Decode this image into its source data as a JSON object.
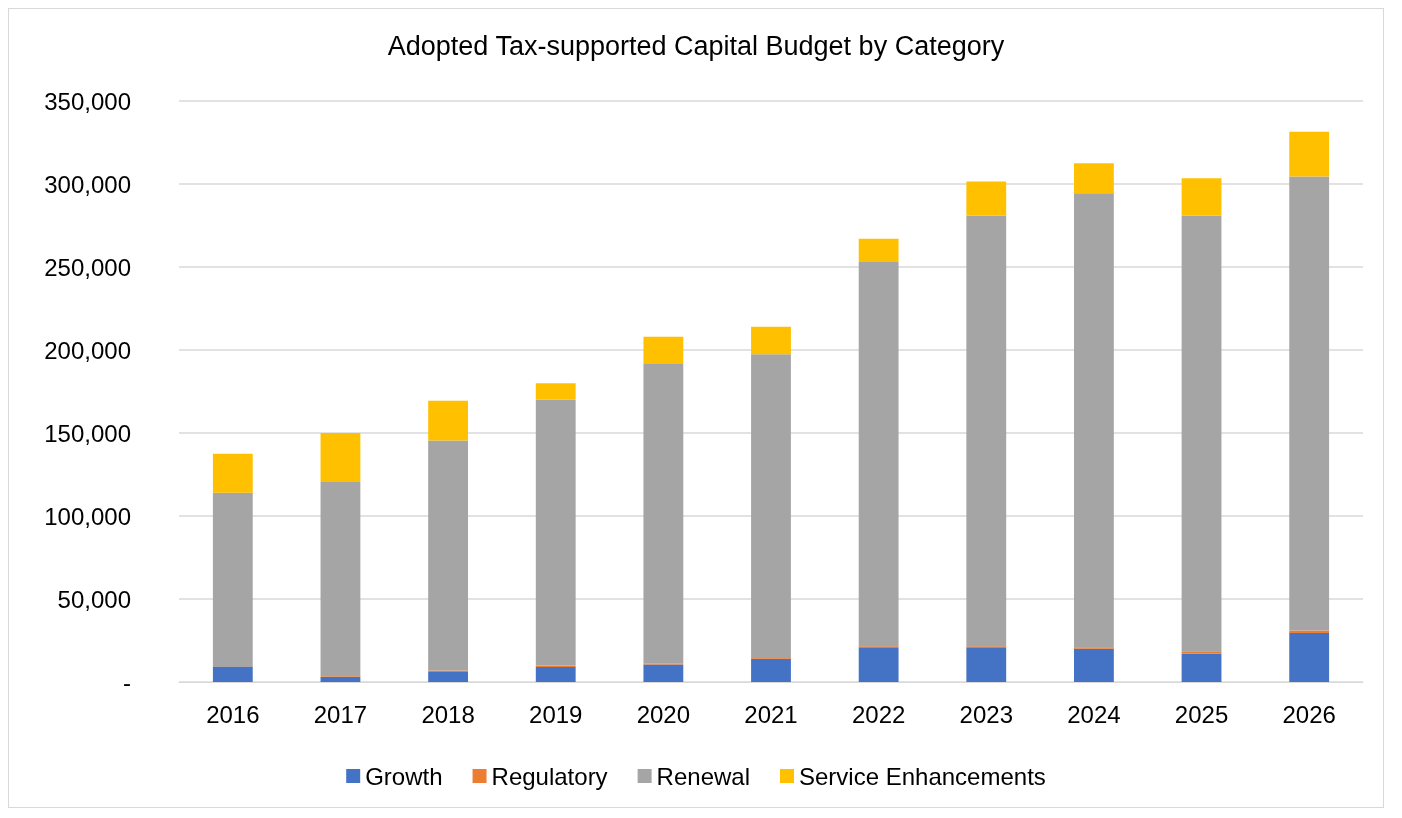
{
  "chart_data": {
    "type": "bar",
    "title": "Adopted Tax-supported Capital Budget by Category",
    "stacked": true,
    "categories": [
      "2016",
      "2017",
      "2018",
      "2019",
      "2020",
      "2021",
      "2022",
      "2023",
      "2024",
      "2025",
      "2026"
    ],
    "series": [
      {
        "name": "Growth",
        "color": "#4472c4",
        "values": [
          9000,
          3000,
          6000,
          9000,
          10500,
          14000,
          21000,
          21000,
          20000,
          17000,
          29500
        ]
      },
      {
        "name": "Regulatory",
        "color": "#ed7d31",
        "values": [
          null,
          500,
          1000,
          1000,
          500,
          500,
          500,
          500,
          1000,
          1500,
          1500
        ]
      },
      {
        "name": "Renewal",
        "color": "#a5a5a5",
        "values": [
          105000,
          117000,
          138500,
          160000,
          180500,
          183000,
          231500,
          259500,
          273500,
          262500,
          273500
        ]
      },
      {
        "name": "Service Enhancements",
        "color": "#ffc000",
        "values": [
          23500,
          29500,
          24000,
          10000,
          16500,
          16500,
          14000,
          20500,
          18000,
          22500,
          27000
        ]
      }
    ],
    "ylim": [
      0,
      350000
    ],
    "yticks": [
      {
        "value": 0,
        "label": "-"
      },
      {
        "value": 50000,
        "label": "50,000"
      },
      {
        "value": 100000,
        "label": "100,000"
      },
      {
        "value": 150000,
        "label": "150,000"
      },
      {
        "value": 200000,
        "label": "200,000"
      },
      {
        "value": 250000,
        "label": "250,000"
      },
      {
        "value": 300000,
        "label": "300,000"
      },
      {
        "value": 350000,
        "label": "350,000"
      }
    ],
    "grid": "y",
    "legend": "bottom"
  }
}
